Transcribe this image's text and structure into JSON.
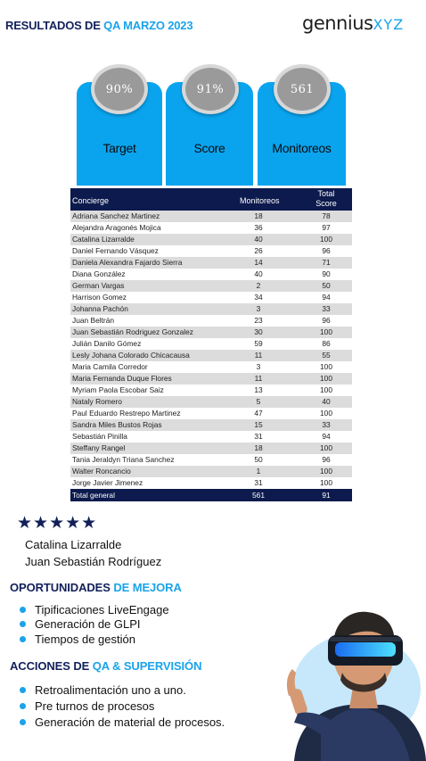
{
  "header": {
    "title_part1": "RESULTADOS DE ",
    "title_part2": "QA MARZO 2023",
    "logo_part1": "gennius",
    "logo_part2": "XYZ"
  },
  "cards": [
    {
      "value": "90%",
      "label": "Target"
    },
    {
      "value": "91%",
      "label": "Score"
    },
    {
      "value": "561",
      "label": "Monitoreos"
    }
  ],
  "table": {
    "headers": [
      "Concierge",
      "Monitoreos",
      "Total Score"
    ],
    "rows": [
      [
        "Adriana Sanchez Martinez",
        "18",
        "78"
      ],
      [
        "Alejandra Aragonés Mojica",
        "36",
        "97"
      ],
      [
        "Catalina Lizarralde",
        "40",
        "100"
      ],
      [
        "Daniel Fernando Vásquez",
        "26",
        "96"
      ],
      [
        "Daniela Alexandra Fajardo Sierra",
        "14",
        "71"
      ],
      [
        "Diana González",
        "40",
        "90"
      ],
      [
        "German Vargas",
        "2",
        "50"
      ],
      [
        "Harrison Gomez",
        "34",
        "94"
      ],
      [
        "Johanna Pachón",
        "3",
        "33"
      ],
      [
        "Juan Beltrán",
        "23",
        "96"
      ],
      [
        "Juan Sebastián Rodriguez Gonzalez",
        "30",
        "100"
      ],
      [
        "Julián Danilo Gómez",
        "59",
        "86"
      ],
      [
        "Lesly Johana Colorado Chicacausa",
        "11",
        "55"
      ],
      [
        "Maria Camila Corredor",
        "3",
        "100"
      ],
      [
        "Maria Fernanda Duque Flores",
        "11",
        "100"
      ],
      [
        "Myriam Paola Escobar Saiz",
        "13",
        "100"
      ],
      [
        "Nataly Romero",
        "5",
        "40"
      ],
      [
        "Paul Eduardo Restrepo Martinez",
        "47",
        "100"
      ],
      [
        "Sandra Miles Bustos Rojas",
        "15",
        "33"
      ],
      [
        "Sebastián Pinilla",
        "31",
        "94"
      ],
      [
        "Steffany Rangel",
        "18",
        "100"
      ],
      [
        "Tania Jeraldyn Triana Sanchez",
        "50",
        "96"
      ],
      [
        "Walter Roncancio",
        "1",
        "100"
      ],
      [
        "Jorge Javier Jimenez",
        "31",
        "100"
      ]
    ],
    "total": [
      "Total general",
      "561",
      "91"
    ]
  },
  "highlights": {
    "stars": "★★★★★",
    "names": [
      "Catalina Lizarralde",
      "Juan Sebastián Rodríguez"
    ]
  },
  "opportunities": {
    "title_part1": "OPORTUNIDADES ",
    "title_part2": "DE MEJORA",
    "items": [
      "Tipificaciones LiveEngage",
      "Generación de GLPI",
      "Tiempos de gestión"
    ]
  },
  "actions": {
    "title_part1": "ACCIONES DE ",
    "title_part2": "QA & SUPERVISIÓN",
    "items": [
      "Retroalimentación uno a uno.",
      "Pre turnos de procesos",
      "Generación de material de procesos."
    ]
  },
  "colors": {
    "accent": "#1aa3ea",
    "navy": "#13205a",
    "card": "#0aa4ee",
    "table_header": "#0c1a4d"
  },
  "illustration": "vr-headset-person"
}
